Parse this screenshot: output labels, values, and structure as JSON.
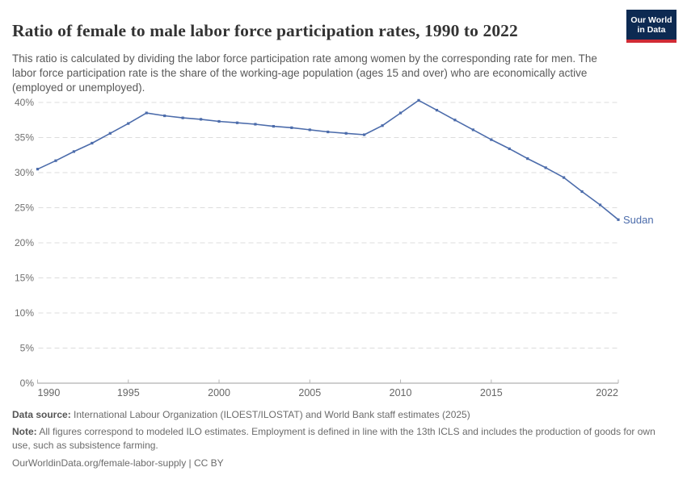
{
  "header": {
    "title": "Ratio of female to male labor force participation rates, 1990 to 2022",
    "subtitle": "This ratio is calculated by dividing the labor force participation rate among women by the corresponding rate for men. The labor force participation rate is the share of the working-age population (ages 15 and over) who are economically active (employed or unemployed).",
    "logo": {
      "line1": "Our World",
      "line2": "in Data",
      "bg_color": "#0d2a52",
      "accent_color": "#d02b35"
    }
  },
  "chart_data": {
    "type": "line",
    "title": "Ratio of female to male labor force participation rates, 1990 to 2022",
    "x": [
      1990,
      1991,
      1992,
      1993,
      1994,
      1995,
      1996,
      1997,
      1998,
      1999,
      2000,
      2001,
      2002,
      2003,
      2004,
      2005,
      2006,
      2007,
      2008,
      2009,
      2010,
      2011,
      2012,
      2013,
      2014,
      2015,
      2016,
      2017,
      2018,
      2019,
      2020,
      2021,
      2022
    ],
    "series": [
      {
        "name": "Sudan",
        "color": "#4c6cab",
        "values": [
          30.5,
          31.7,
          33.0,
          34.2,
          35.6,
          37.0,
          38.5,
          38.1,
          37.8,
          37.6,
          37.3,
          37.1,
          36.9,
          36.6,
          36.4,
          36.1,
          35.8,
          35.6,
          35.4,
          36.7,
          38.5,
          40.3,
          38.9,
          37.5,
          36.1,
          34.7,
          33.4,
          32.0,
          30.7,
          29.3,
          27.3,
          25.4,
          23.3
        ]
      }
    ],
    "x_ticks": [
      1990,
      1995,
      2000,
      2005,
      2010,
      2015,
      2022
    ],
    "y_ticks": [
      0,
      5,
      10,
      15,
      20,
      25,
      30,
      35,
      40
    ],
    "y_tick_suffix": "%",
    "xlim": [
      1990,
      2022
    ],
    "ylim": [
      0,
      41.5
    ],
    "grid": "horizontal-dashed",
    "legend": "end-of-line-label",
    "end_label": "Sudan",
    "colors": {
      "line": "#4c6cab",
      "gridline": "#dcdcdc",
      "axis": "#9e9e9e",
      "tick": "#b5b5b5",
      "y_label": "#6f6f6f",
      "x_label": "#666666"
    }
  },
  "footer": {
    "data_source_label": "Data source:",
    "data_source_text": " International Labour Organization (ILOEST/ILOSTAT) and World Bank staff estimates (2025)",
    "note_label": "Note:",
    "note_text": " All figures correspond to modeled ILO estimates. Employment is defined in line with the 13th ICLS and includes the production of goods for own use, such as subsistence farming.",
    "citation": "OurWorldinData.org/female-labor-supply | CC BY"
  }
}
